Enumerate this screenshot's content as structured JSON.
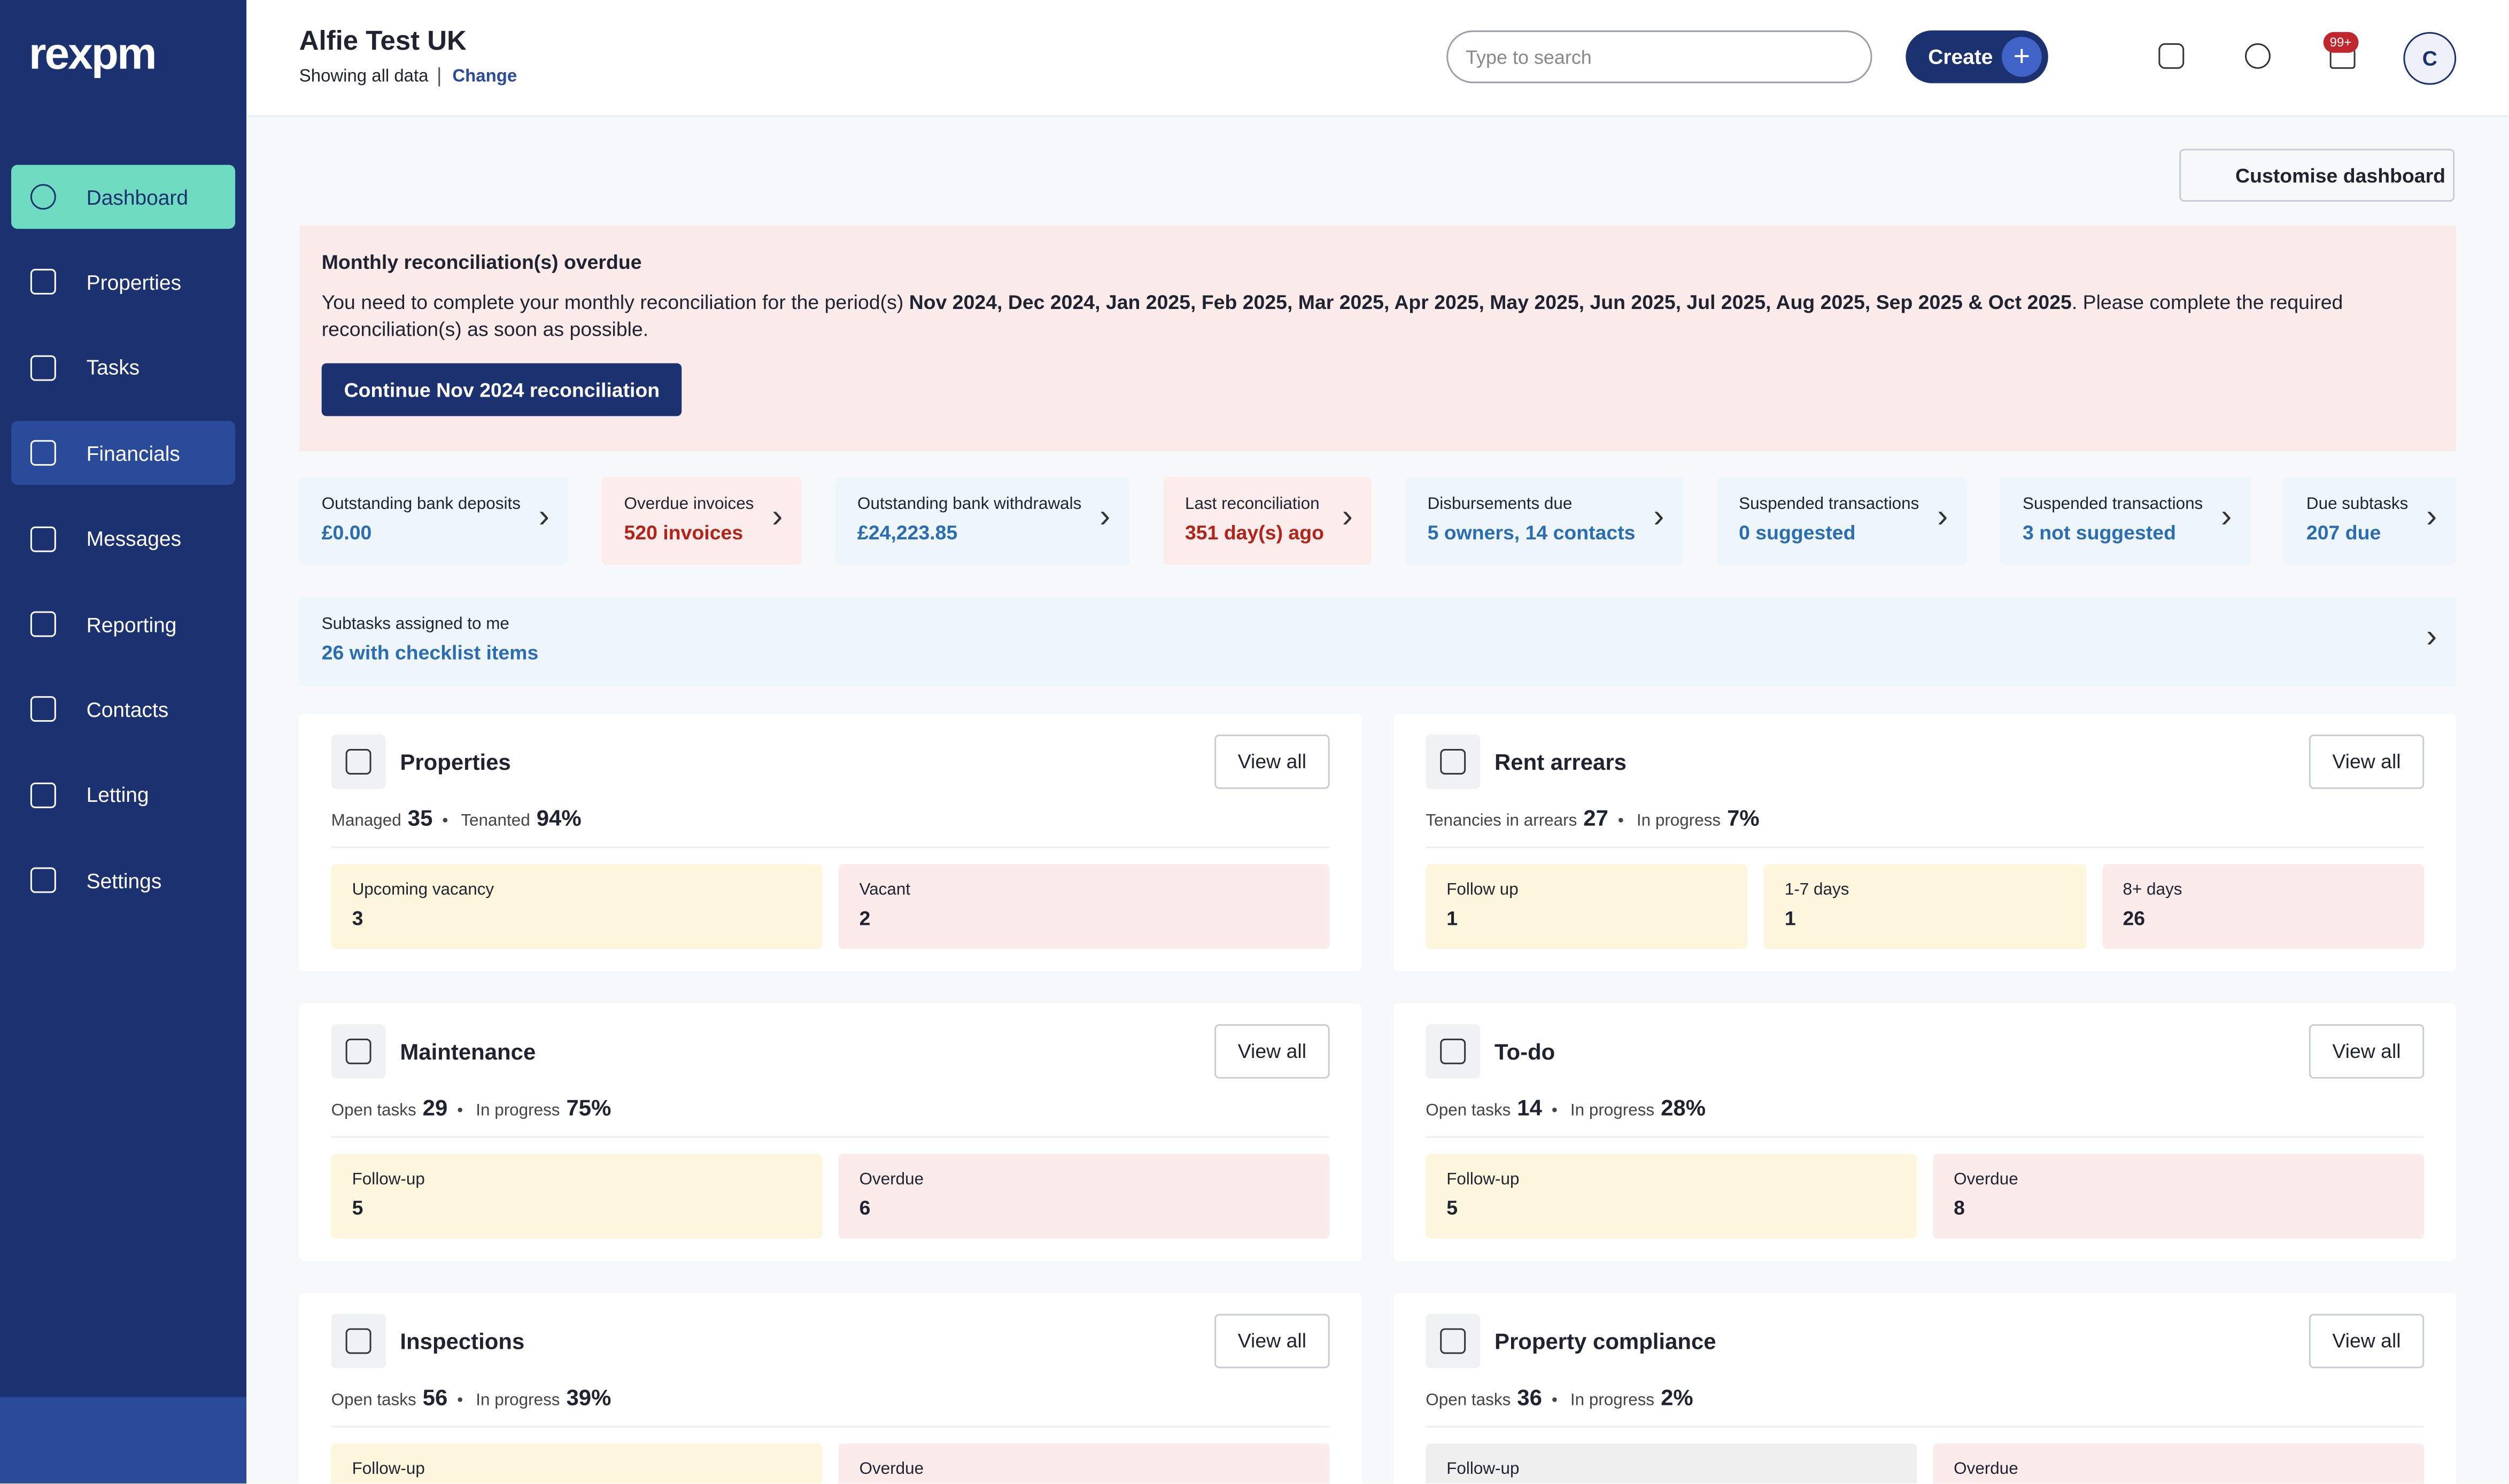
{
  "sidebar": {
    "logo": "rexpm",
    "nav": [
      "Dashboard",
      "Properties",
      "Tasks",
      "Financials",
      "Messages",
      "Reporting",
      "Contacts",
      "Letting",
      "Settings"
    ]
  },
  "header": {
    "org": "Alfie Test UK",
    "showing": "Showing all data",
    "change": "Change",
    "search": "Type to search",
    "create": "Create",
    "notifications": "99+",
    "avatar": "C"
  },
  "customise": "Customise dashboard",
  "alert": {
    "title": "Monthly reconciliation(s) overdue",
    "text_start": "You need to complete your monthly reconciliation for the period(s) ",
    "periods": "Nov 2024, Dec 2024, Jan 2025, Feb 2025, Mar 2025, Apr 2025, May 2025, Jun 2025, Jul 2025, Aug 2025, Sep 2025 & Oct 2025",
    "text_end": ". Please complete the required reconciliation(s) as soon as possible.",
    "button": "Continue Nov 2024 reconciliation"
  },
  "tiles": [
    {
      "label": "Outstanding bank deposits",
      "value": "£0.00",
      "tone": "blue"
    },
    {
      "label": "Overdue invoices",
      "value": "520 invoices",
      "tone": "red"
    },
    {
      "label": "Outstanding bank withdrawals",
      "value": "£24,223.85",
      "tone": "blue"
    },
    {
      "label": "Last reconciliation",
      "value": "351 day(s) ago",
      "tone": "red"
    },
    {
      "label": "Disbursements due",
      "value": "5 owners, 14 contacts",
      "tone": "blue"
    },
    {
      "label": "Suspended transactions",
      "value": "0 suggested",
      "tone": "blue"
    },
    {
      "label": "Suspended transactions",
      "value": "3 not suggested",
      "tone": "blue"
    },
    {
      "label": "Due subtasks",
      "value": "207 due",
      "tone": "blue"
    }
  ],
  "subtasks": {
    "label": "Subtasks assigned to me",
    "value": "26 with checklist items"
  },
  "view_all": "View all",
  "widgets": [
    {
      "title": "Properties",
      "stats": [
        {
          "label": "Managed",
          "value": "35"
        },
        {
          "label": "Tenanted",
          "value": "94%"
        }
      ],
      "cells": [
        {
          "label": "Upcoming vacancy",
          "value": "3",
          "tone": "yellow"
        },
        {
          "label": "Vacant",
          "value": "2",
          "tone": "red"
        }
      ]
    },
    {
      "title": "Rent arrears",
      "stats": [
        {
          "label": "Tenancies in arrears",
          "value": "27"
        },
        {
          "label": "In progress",
          "value": "7%"
        }
      ],
      "cells": [
        {
          "label": "Follow up",
          "value": "1",
          "tone": "yellow"
        },
        {
          "label": "1-7 days",
          "value": "1",
          "tone": "yellow"
        },
        {
          "label": "8+ days",
          "value": "26",
          "tone": "red"
        }
      ]
    },
    {
      "title": "Maintenance",
      "stats": [
        {
          "label": "Open tasks",
          "value": "29"
        },
        {
          "label": "In progress",
          "value": "75%"
        }
      ],
      "cells": [
        {
          "label": "Follow-up",
          "value": "5",
          "tone": "yellow"
        },
        {
          "label": "Overdue",
          "value": "6",
          "tone": "red"
        }
      ]
    },
    {
      "title": "To-do",
      "stats": [
        {
          "label": "Open tasks",
          "value": "14"
        },
        {
          "label": "In progress",
          "value": "28%"
        }
      ],
      "cells": [
        {
          "label": "Follow-up",
          "value": "5",
          "tone": "yellow"
        },
        {
          "label": "Overdue",
          "value": "8",
          "tone": "red"
        }
      ]
    },
    {
      "title": "Inspections",
      "stats": [
        {
          "label": "Open tasks",
          "value": "56"
        },
        {
          "label": "In progress",
          "value": "39%"
        }
      ],
      "cells": [
        {
          "label": "Follow-up",
          "tone": "yellow"
        },
        {
          "label": "Overdue",
          "tone": "red"
        }
      ]
    },
    {
      "title": "Property compliance",
      "stats": [
        {
          "label": "Open tasks",
          "value": "36"
        },
        {
          "label": "In progress",
          "value": "2%"
        }
      ],
      "cells": [
        {
          "label": "Follow-up",
          "tone": "grey"
        },
        {
          "label": "Overdue",
          "tone": "red"
        }
      ]
    }
  ]
}
